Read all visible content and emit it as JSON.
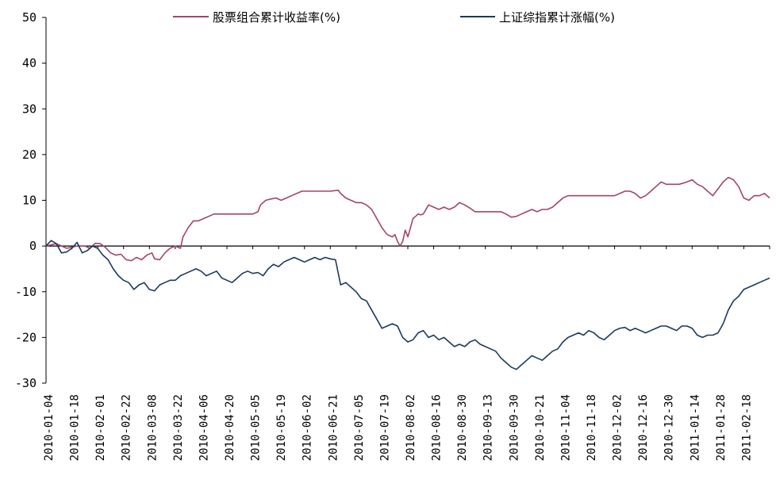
{
  "chart_data": {
    "type": "line",
    "title": "",
    "xlabel": "",
    "ylabel": "",
    "ylim": [
      -30,
      50
    ],
    "yticks": [
      -30,
      -20,
      -10,
      0,
      10,
      20,
      30,
      40,
      50
    ],
    "xtick_labels": [
      "2010-01-04",
      "2010-01-18",
      "2010-02-01",
      "2010-02-22",
      "2010-03-08",
      "2010-03-22",
      "2010-04-06",
      "2010-04-20",
      "2010-05-05",
      "2010-05-19",
      "2010-06-02",
      "2010-06-21",
      "2010-07-05",
      "2010-07-19",
      "2010-08-02",
      "2010-08-16",
      "2010-08-30",
      "2010-09-13",
      "2010-09-30",
      "2010-10-21",
      "2010-11-04",
      "2010-11-18",
      "2010-12-02",
      "2010-12-16",
      "2010-12-30",
      "2011-01-14",
      "2011-01-28",
      "2011-02-18"
    ],
    "x_index_range": [
      0,
      280
    ],
    "grid": false,
    "legend_position": "top",
    "series": [
      {
        "name": "股票组合累计收益率(%)",
        "color": "#A3446B",
        "points": [
          [
            0,
            0
          ],
          [
            4,
            0.5
          ],
          [
            8,
            -0.5
          ],
          [
            12,
            0
          ],
          [
            15,
            0
          ],
          [
            17,
            -0.5
          ],
          [
            19,
            0.6
          ],
          [
            21,
            0.5
          ],
          [
            23,
            -0.3
          ],
          [
            25,
            -1.5
          ],
          [
            27,
            -2
          ],
          [
            29,
            -1.8
          ],
          [
            31,
            -3
          ],
          [
            33,
            -3.2
          ],
          [
            35,
            -2.5
          ],
          [
            37,
            -3
          ],
          [
            39,
            -2
          ],
          [
            41,
            -1.5
          ],
          [
            42,
            -2.8
          ],
          [
            44,
            -3
          ],
          [
            46,
            -1.5
          ],
          [
            48,
            -0.5
          ],
          [
            50,
            0
          ],
          [
            52,
            -0.5
          ],
          [
            53,
            2
          ],
          [
            55,
            4
          ],
          [
            57,
            5.5
          ],
          [
            59,
            5.5
          ],
          [
            61,
            6
          ],
          [
            63,
            6.5
          ],
          [
            65,
            7
          ],
          [
            68,
            7
          ],
          [
            72,
            7
          ],
          [
            76,
            7
          ],
          [
            80,
            7
          ],
          [
            82,
            7.5
          ],
          [
            83,
            9
          ],
          [
            85,
            10
          ],
          [
            87,
            10.3
          ],
          [
            89,
            10.5
          ],
          [
            91,
            10
          ],
          [
            93,
            10.5
          ],
          [
            95,
            11
          ],
          [
            97,
            11.5
          ],
          [
            99,
            12
          ],
          [
            102,
            12
          ],
          [
            106,
            12
          ],
          [
            110,
            12
          ],
          [
            113,
            12.2
          ],
          [
            114,
            11.5
          ],
          [
            116,
            10.5
          ],
          [
            118,
            10
          ],
          [
            120,
            9.5
          ],
          [
            122,
            9.5
          ],
          [
            124,
            9
          ],
          [
            126,
            8
          ],
          [
            128,
            6
          ],
          [
            130,
            4
          ],
          [
            132,
            2.5
          ],
          [
            134,
            2
          ],
          [
            135,
            2.5
          ],
          [
            136,
            1
          ],
          [
            137,
            0
          ],
          [
            138,
            1
          ],
          [
            139,
            3.5
          ],
          [
            140,
            2
          ],
          [
            141,
            4
          ],
          [
            142,
            6
          ],
          [
            143,
            6.5
          ],
          [
            144,
            7
          ],
          [
            145,
            6.8
          ],
          [
            146,
            7
          ],
          [
            148,
            9
          ],
          [
            150,
            8.5
          ],
          [
            152,
            8
          ],
          [
            154,
            8.5
          ],
          [
            156,
            8
          ],
          [
            158,
            8.5
          ],
          [
            160,
            9.5
          ],
          [
            162,
            9
          ],
          [
            164,
            8.3
          ],
          [
            166,
            7.5
          ],
          [
            168,
            7.5
          ],
          [
            172,
            7.5
          ],
          [
            176,
            7.5
          ],
          [
            178,
            7
          ],
          [
            180,
            6.3
          ],
          [
            182,
            6.5
          ],
          [
            184,
            7
          ],
          [
            186,
            7.5
          ],
          [
            188,
            8
          ],
          [
            190,
            7.5
          ],
          [
            192,
            8
          ],
          [
            194,
            8
          ],
          [
            196,
            8.5
          ],
          [
            198,
            9.5
          ],
          [
            200,
            10.5
          ],
          [
            202,
            11
          ],
          [
            205,
            11
          ],
          [
            210,
            11
          ],
          [
            215,
            11
          ],
          [
            220,
            11
          ],
          [
            222,
            11.5
          ],
          [
            224,
            12
          ],
          [
            226,
            12
          ],
          [
            228,
            11.5
          ],
          [
            230,
            10.5
          ],
          [
            232,
            11
          ],
          [
            234,
            12
          ],
          [
            236,
            13
          ],
          [
            238,
            14
          ],
          [
            240,
            13.5
          ],
          [
            242,
            13.5
          ],
          [
            245,
            13.5
          ],
          [
            248,
            14
          ],
          [
            250,
            14.5
          ],
          [
            252,
            13.5
          ],
          [
            254,
            13
          ],
          [
            256,
            12
          ],
          [
            258,
            11
          ],
          [
            260,
            12.5
          ],
          [
            262,
            14
          ],
          [
            264,
            15
          ],
          [
            266,
            14.5
          ],
          [
            268,
            13
          ],
          [
            270,
            10.5
          ],
          [
            272,
            10
          ],
          [
            274,
            11
          ],
          [
            276,
            11
          ],
          [
            278,
            11.5
          ],
          [
            280,
            10.5
          ]
        ]
      },
      {
        "name": "上证综指累计涨幅(%)",
        "color": "#1B3A5E",
        "points": [
          [
            0,
            0
          ],
          [
            2,
            1.2
          ],
          [
            4,
            0.5
          ],
          [
            6,
            -1.5
          ],
          [
            8,
            -1.3
          ],
          [
            10,
            -0.5
          ],
          [
            12,
            0.8
          ],
          [
            14,
            -1.5
          ],
          [
            16,
            -1
          ],
          [
            18,
            0
          ],
          [
            20,
            -0.5
          ],
          [
            22,
            -2
          ],
          [
            24,
            -3
          ],
          [
            26,
            -5
          ],
          [
            28,
            -6.5
          ],
          [
            30,
            -7.5
          ],
          [
            32,
            -8
          ],
          [
            34,
            -9.5
          ],
          [
            36,
            -8.5
          ],
          [
            38,
            -8
          ],
          [
            40,
            -9.5
          ],
          [
            42,
            -9.8
          ],
          [
            44,
            -8.5
          ],
          [
            46,
            -8
          ],
          [
            48,
            -7.5
          ],
          [
            50,
            -7.5
          ],
          [
            52,
            -6.5
          ],
          [
            54,
            -6
          ],
          [
            56,
            -5.5
          ],
          [
            58,
            -5
          ],
          [
            60,
            -5.5
          ],
          [
            62,
            -6.5
          ],
          [
            64,
            -6
          ],
          [
            66,
            -5.5
          ],
          [
            68,
            -7
          ],
          [
            70,
            -7.5
          ],
          [
            72,
            -8
          ],
          [
            74,
            -7
          ],
          [
            76,
            -6
          ],
          [
            78,
            -5.5
          ],
          [
            80,
            -6
          ],
          [
            82,
            -5.8
          ],
          [
            84,
            -6.5
          ],
          [
            86,
            -5
          ],
          [
            88,
            -4
          ],
          [
            90,
            -4.5
          ],
          [
            92,
            -3.5
          ],
          [
            94,
            -3
          ],
          [
            96,
            -2.5
          ],
          [
            98,
            -3
          ],
          [
            100,
            -3.5
          ],
          [
            102,
            -3
          ],
          [
            104,
            -2.5
          ],
          [
            106,
            -3
          ],
          [
            108,
            -2.5
          ],
          [
            110,
            -2.8
          ],
          [
            112,
            -3
          ],
          [
            114,
            -8.5
          ],
          [
            116,
            -8
          ],
          [
            118,
            -9
          ],
          [
            120,
            -10
          ],
          [
            122,
            -11.5
          ],
          [
            124,
            -12
          ],
          [
            126,
            -14
          ],
          [
            128,
            -16
          ],
          [
            130,
            -18
          ],
          [
            132,
            -17.5
          ],
          [
            134,
            -17
          ],
          [
            136,
            -17.5
          ],
          [
            138,
            -20
          ],
          [
            140,
            -21
          ],
          [
            142,
            -20.5
          ],
          [
            144,
            -19
          ],
          [
            146,
            -18.5
          ],
          [
            148,
            -20
          ],
          [
            150,
            -19.5
          ],
          [
            152,
            -20.5
          ],
          [
            154,
            -20
          ],
          [
            156,
            -21
          ],
          [
            158,
            -22
          ],
          [
            160,
            -21.5
          ],
          [
            162,
            -22
          ],
          [
            164,
            -21
          ],
          [
            166,
            -20.5
          ],
          [
            168,
            -21.5
          ],
          [
            170,
            -22
          ],
          [
            172,
            -22.5
          ],
          [
            174,
            -23
          ],
          [
            176,
            -24.5
          ],
          [
            178,
            -25.5
          ],
          [
            180,
            -26.5
          ],
          [
            182,
            -27
          ],
          [
            184,
            -26
          ],
          [
            186,
            -25
          ],
          [
            188,
            -24
          ],
          [
            190,
            -24.5
          ],
          [
            192,
            -25
          ],
          [
            194,
            -24
          ],
          [
            196,
            -23
          ],
          [
            198,
            -22.5
          ],
          [
            200,
            -21
          ],
          [
            202,
            -20
          ],
          [
            204,
            -19.5
          ],
          [
            206,
            -19
          ],
          [
            208,
            -19.5
          ],
          [
            210,
            -18.5
          ],
          [
            212,
            -19
          ],
          [
            214,
            -20
          ],
          [
            216,
            -20.5
          ],
          [
            218,
            -19.5
          ],
          [
            220,
            -18.5
          ],
          [
            222,
            -18
          ],
          [
            224,
            -17.8
          ],
          [
            226,
            -18.5
          ],
          [
            228,
            -18
          ],
          [
            230,
            -18.5
          ],
          [
            232,
            -19
          ],
          [
            234,
            -18.5
          ],
          [
            236,
            -18
          ],
          [
            238,
            -17.5
          ],
          [
            240,
            -17.5
          ],
          [
            242,
            -18
          ],
          [
            244,
            -18.5
          ],
          [
            246,
            -17.5
          ],
          [
            248,
            -17.5
          ],
          [
            250,
            -18
          ],
          [
            252,
            -19.5
          ],
          [
            254,
            -20
          ],
          [
            256,
            -19.5
          ],
          [
            258,
            -19.5
          ],
          [
            260,
            -19
          ],
          [
            262,
            -17
          ],
          [
            264,
            -14
          ],
          [
            266,
            -12
          ],
          [
            268,
            -11
          ],
          [
            270,
            -9.5
          ],
          [
            272,
            -9
          ],
          [
            274,
            -8.5
          ],
          [
            276,
            -8
          ],
          [
            278,
            -7.5
          ],
          [
            280,
            -7
          ]
        ]
      }
    ]
  }
}
